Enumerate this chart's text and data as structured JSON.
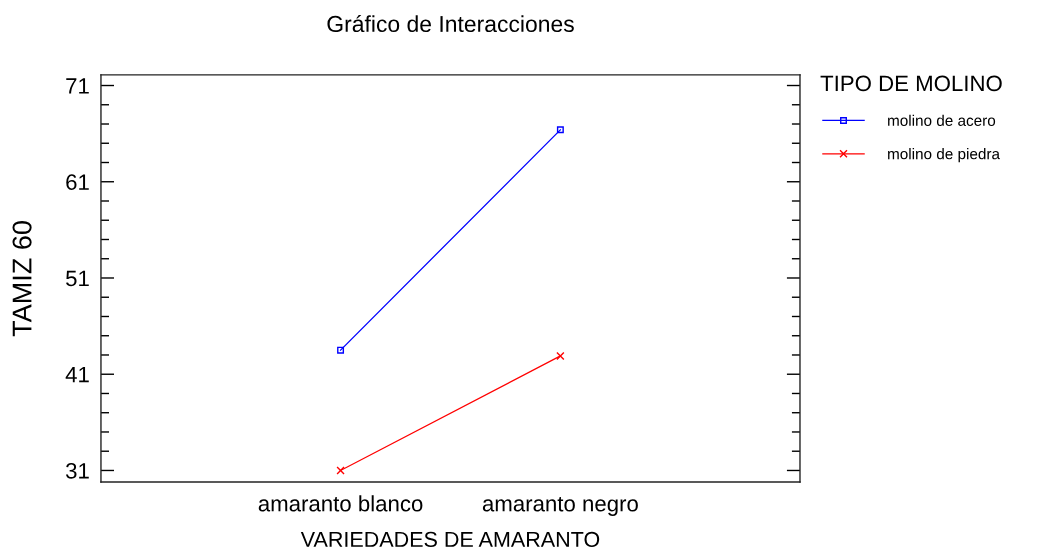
{
  "chart_data": {
    "type": "line",
    "title": "Gráfico de Interacciones",
    "xlabel": "VARIEDADES DE AMARANTO",
    "ylabel": "TAMIZ 60",
    "legend_title": "TIPO DE MOLINO",
    "categories": [
      "amaranto blanco",
      "amaranto negro"
    ],
    "series": [
      {
        "name": "molino de acero",
        "color": "#0000ff",
        "marker": "square",
        "values": [
          43.5,
          66.4
        ]
      },
      {
        "name": "molino de piedra",
        "color": "#ff0000",
        "marker": "cross",
        "values": [
          31.0,
          42.9
        ]
      }
    ],
    "ylim": [
      29.8,
      72.1
    ],
    "yticks": [
      31,
      {
        "value": 33,
        "label": null
      },
      {
        "value": 35,
        "label": null
      },
      {
        "value": 37,
        "label": null
      },
      {
        "value": 39,
        "label": null
      },
      41,
      {
        "value": 43,
        "label": null
      },
      {
        "value": 45,
        "label": null
      },
      {
        "value": 47,
        "label": null
      },
      {
        "value": 49,
        "label": null
      },
      51,
      {
        "value": 53,
        "label": null
      },
      {
        "value": 55,
        "label": null
      },
      {
        "value": 57,
        "label": null
      },
      {
        "value": 59,
        "label": null
      },
      61,
      {
        "value": 63,
        "label": null
      },
      {
        "value": 65,
        "label": null
      },
      {
        "value": 67,
        "label": null
      },
      {
        "value": 69,
        "label": null
      },
      71
    ],
    "grid": false,
    "legend": "top right",
    "line_style": "solid"
  }
}
